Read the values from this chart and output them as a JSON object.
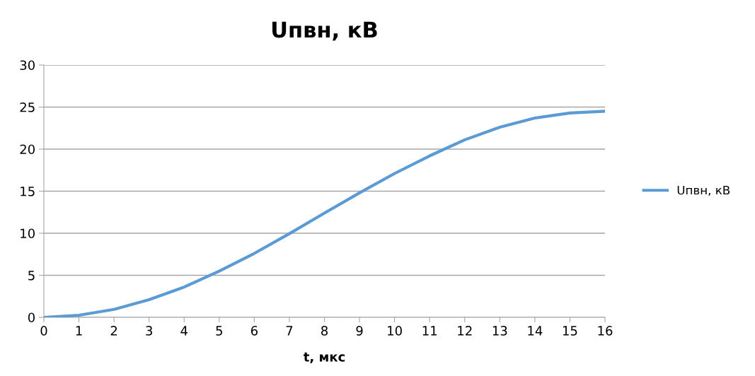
{
  "chart_data": {
    "type": "line",
    "title": "Uпвн, кВ",
    "xlabel": "t, мкс",
    "categories": [
      "0",
      "1",
      "2",
      "3",
      "4",
      "5",
      "6",
      "7",
      "8",
      "9",
      "10",
      "11",
      "12",
      "13",
      "14",
      "15",
      "16"
    ],
    "series": [
      {
        "name": "Uпвн, кВ",
        "color": "#5b9bd5",
        "values": [
          0,
          0.25,
          0.95,
          2.1,
          3.6,
          5.5,
          7.6,
          9.95,
          12.4,
          14.8,
          17.1,
          19.2,
          21.1,
          22.6,
          23.7,
          24.3,
          24.5
        ]
      }
    ],
    "ylim": [
      0,
      30
    ],
    "yticks": [
      0,
      5,
      10,
      15,
      20,
      25,
      30
    ],
    "grid": "y",
    "legend": "right",
    "marker": "none",
    "line_style": "solid"
  }
}
